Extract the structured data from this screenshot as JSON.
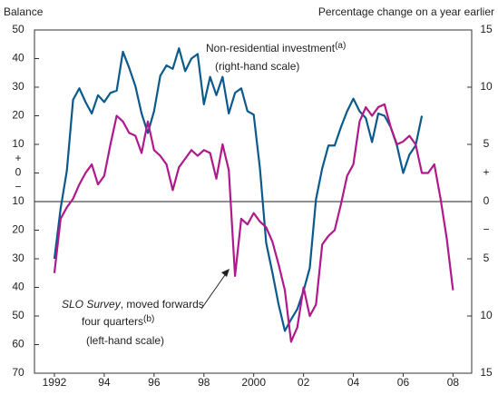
{
  "chart_data": {
    "type": "line",
    "left_axis_title": "Balance",
    "right_axis_title": "Percentage change on a year earlier",
    "annotations": {
      "investment": [
        "Non-residential investment",
        "(a)",
        "(right-hand scale)"
      ],
      "survey": [
        "SLO Survey",
        ", moved forwards",
        "four quarters",
        "(b)",
        "(left-hand scale)"
      ]
    },
    "left_sign_labels": [
      "+",
      "−"
    ],
    "right_sign_labels": [
      "+",
      "−"
    ],
    "xlim": [
      1991.2,
      2008.75
    ],
    "xticks": [
      1992,
      {
        "value": 1994,
        "label": "94"
      },
      {
        "value": 1996,
        "label": "96"
      },
      {
        "value": 1998,
        "label": "98"
      },
      2000,
      {
        "value": 2002,
        "label": "02"
      },
      {
        "value": 2004,
        "label": "04"
      },
      {
        "value": 2006,
        "label": "06"
      },
      {
        "value": 2008,
        "label": "08"
      }
    ],
    "ylim": [
      -70,
      50
    ],
    "yticks": [
      50,
      40,
      30,
      20,
      10,
      0,
      {
        "value": -10,
        "label": "10"
      },
      {
        "value": -20,
        "label": "20"
      },
      {
        "value": -30,
        "label": "30"
      },
      {
        "value": -40,
        "label": "40"
      },
      {
        "value": -50,
        "label": "50"
      },
      {
        "value": -60,
        "label": "60"
      },
      {
        "value": -70,
        "label": "70"
      }
    ],
    "y2lim": [
      -15,
      15
    ],
    "y2ticks": [
      15,
      10,
      5,
      0,
      {
        "value": -5,
        "label": "5"
      },
      {
        "value": -10,
        "label": "10"
      },
      {
        "value": -15,
        "label": "15"
      }
    ],
    "series": [
      {
        "name": "Non-residential investment",
        "color": "#0b5a8c",
        "axis": "y2",
        "x_start": 1992,
        "x_step": 0.25,
        "values": [
          -5.0,
          -0.6,
          2.7,
          8.9,
          9.9,
          8.7,
          7.7,
          9.3,
          8.7,
          9.5,
          9.7,
          13.1,
          11.7,
          10.1,
          7.7,
          6.0,
          7.9,
          11.0,
          11.9,
          11.6,
          13.4,
          11.4,
          12.5,
          12.9,
          8.5,
          10.9,
          9.3,
          10.9,
          7.7,
          9.5,
          9.9,
          7.9,
          7.6,
          2.9,
          -3.6,
          -6.2,
          -9.0,
          -11.3,
          -10.3,
          -9.4,
          -7.8,
          -5.8,
          0.2,
          2.9,
          4.9,
          4.9,
          6.5,
          7.9,
          9.0,
          7.9,
          7.3,
          5.2,
          7.7,
          7.5,
          6.5,
          4.9,
          2.5,
          4.1,
          4.9,
          7.5
        ]
      },
      {
        "name": "SLO Survey",
        "color": "#b0198c",
        "axis": "y",
        "x_start": 1992,
        "x_step": 0.25,
        "values": [
          -35,
          -16,
          -12,
          -9,
          -4,
          0,
          3,
          -4,
          -1,
          10,
          20,
          18,
          14,
          13,
          7,
          18,
          8,
          6,
          3,
          -6,
          2,
          5,
          8,
          6,
          8,
          7,
          -2,
          10,
          1,
          -36,
          -16,
          -18,
          -14,
          -17,
          -19,
          -24,
          -32,
          -41,
          -59,
          -54,
          -40,
          -50,
          -46,
          -25,
          -22,
          -20,
          -11,
          -1,
          3,
          18,
          23,
          20,
          23,
          24,
          16,
          10,
          11,
          13,
          10,
          0,
          0,
          3,
          -9,
          -23,
          -41
        ]
      }
    ]
  }
}
